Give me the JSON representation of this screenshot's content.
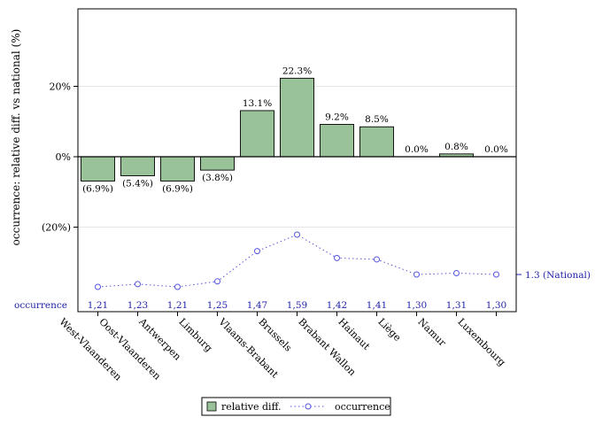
{
  "chart_data": {
    "type": "bar",
    "ylabel": "occurrence: relative diff. vs national (%)",
    "y_ticks": [
      {
        "value": 20,
        "label": "20%"
      },
      {
        "value": 0,
        "label": "0%"
      },
      {
        "value": -20,
        "label": "(20%)"
      }
    ],
    "ylim": [
      -44,
      42
    ],
    "grid": true,
    "categories": [
      "West-Vlaanderen",
      "Oost-Vlaanderen",
      "Antwerpen",
      "Limburg",
      "Vlaams-Brabant",
      "Brussels",
      "Brabant Wallon",
      "Hainaut",
      "Liège",
      "Namur",
      "Luxembourg"
    ],
    "series": [
      {
        "name": "relative diff.",
        "type": "bar",
        "color": "#99c299",
        "values": [
          -6.9,
          -5.4,
          -6.9,
          -3.8,
          13.1,
          22.3,
          9.2,
          8.5,
          0.0,
          0.8,
          0.0
        ],
        "labels": [
          "(6.9%)",
          "(5.4%)",
          "(6.9%)",
          "(3.8%)",
          "13.1%",
          "22.3%",
          "9.2%",
          "8.5%",
          "0.0%",
          "0.8%",
          "0.0%"
        ]
      },
      {
        "name": "occurrence",
        "type": "line",
        "color": "#5555dd",
        "values": [
          1.21,
          1.23,
          1.21,
          1.25,
          1.47,
          1.59,
          1.42,
          1.41,
          1.3,
          1.31,
          1.3
        ],
        "labels": [
          "1,21",
          "1,23",
          "1,21",
          "1,25",
          "1,47",
          "1,59",
          "1,42",
          "1,41",
          "1,30",
          "1,31",
          "1,30"
        ]
      }
    ],
    "occurrence_row_label": "occurrence",
    "national_label": "1.3 (National)",
    "national_value": 1.3,
    "legend": {
      "placement": "bottom",
      "items": [
        {
          "label": "relative diff.",
          "kind": "bar"
        },
        {
          "label": "occurrence",
          "kind": "line"
        }
      ]
    }
  }
}
